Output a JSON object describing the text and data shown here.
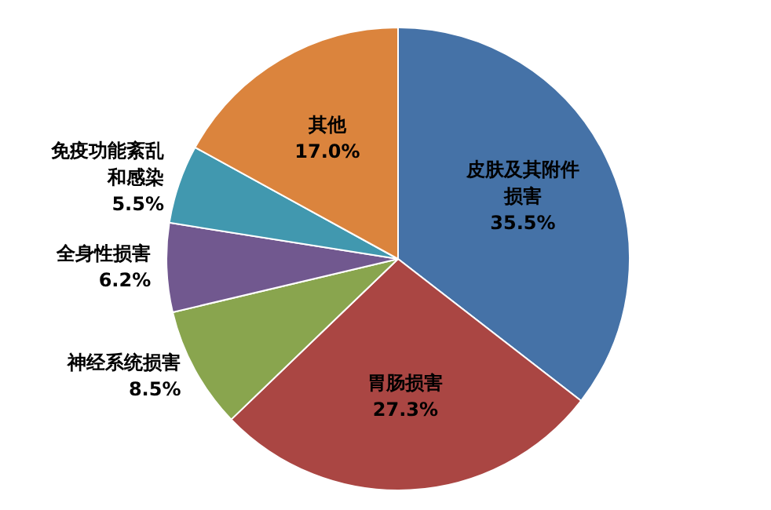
{
  "chart_data": {
    "type": "pie",
    "categories": [
      "皮肤及其附件损害",
      "胃肠损害",
      "神经系统损害",
      "全身性损害",
      "免疫功能紊乱和感染",
      "其他"
    ],
    "values": [
      35.5,
      27.3,
      8.5,
      6.2,
      5.5,
      17.0
    ],
    "colors": [
      "#4572a7",
      "#aa4643",
      "#89a54e",
      "#71588f",
      "#4198af",
      "#db843d"
    ],
    "value_labels": [
      "35.5%",
      "27.3%",
      "8.5%",
      "6.2%",
      "5.5%",
      "17.0%"
    ],
    "legend": false
  }
}
